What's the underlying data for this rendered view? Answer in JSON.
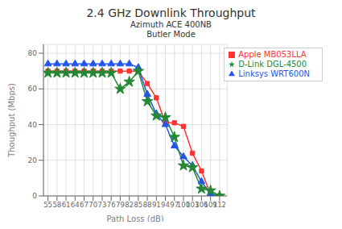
{
  "chart_data": {
    "type": "line",
    "title": "2.4 GHz Downlink Throughput",
    "subtitle": [
      "Azimuth ACE 400NB",
      "Butler Mode"
    ],
    "xlabel": "Path Loss (dB)",
    "ylabel": "Thoughput (Mbps)",
    "x": [
      55,
      58,
      61,
      64,
      67,
      70,
      73,
      76,
      79,
      82,
      85,
      88,
      91,
      94,
      97,
      100,
      103,
      106,
      109,
      112
    ],
    "xlim": [
      53.5,
      114.5
    ],
    "ylim": [
      0,
      85
    ],
    "xticks": [
      55,
      58,
      61,
      64,
      67,
      70,
      73,
      76,
      79,
      82,
      85,
      88,
      91,
      94,
      97,
      100,
      103,
      106,
      109,
      112
    ],
    "yticks": [
      0,
      20,
      40,
      60,
      80
    ],
    "grid": true,
    "legend": "upper right",
    "series": [
      {
        "name": "Apple MB053LLA",
        "color": "#ff3333",
        "marker": "square",
        "values": [
          70,
          70,
          70,
          70,
          70,
          70,
          70,
          70,
          70,
          70,
          70,
          63,
          55,
          41,
          41,
          39,
          24,
          14,
          1,
          0
        ]
      },
      {
        "name": "Linksys WRT600N",
        "color": "#2255ee",
        "marker": "triangle",
        "values": [
          74,
          74,
          74,
          74,
          74,
          74,
          74,
          74,
          74,
          74,
          72,
          57,
          46,
          40,
          28,
          22,
          17,
          8,
          1,
          0
        ]
      },
      {
        "name": "D-Link DGL-4500",
        "color": "#228833",
        "marker": "star",
        "values": [
          69,
          69,
          69,
          69,
          69,
          69,
          69,
          69,
          60,
          64,
          70,
          53,
          45,
          44,
          33,
          17,
          16,
          4,
          3,
          0
        ]
      }
    ]
  }
}
